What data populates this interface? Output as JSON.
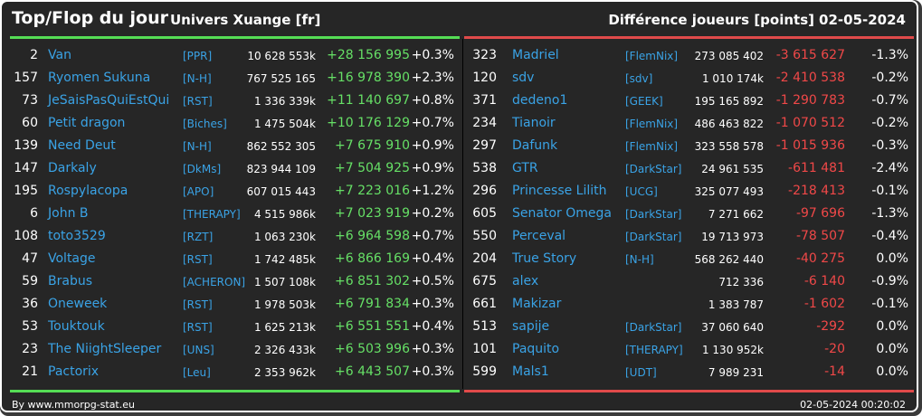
{
  "header": {
    "title": "Top/Flop du jour",
    "universe": "Univers Xuange [fr]",
    "metric": "Différence joueurs [points]",
    "date": "02-05-2024"
  },
  "colors": {
    "background": "#262626",
    "top_bar": "#55dd55",
    "flop_bar": "#e04a4a",
    "name": "#3aa3e6",
    "gain": "#66e066",
    "loss": "#f04848"
  },
  "top": [
    {
      "rank": "2",
      "name": "Van",
      "guild": "[PPR]",
      "score": "10 628 553k",
      "diff": "+28 156 995",
      "pct": "+0.3%"
    },
    {
      "rank": "157",
      "name": "Ryomen Sukuna",
      "guild": "[N-H]",
      "score": "767 525 165",
      "diff": "+16 978 390",
      "pct": "+2.3%"
    },
    {
      "rank": "73",
      "name": "JeSaisPasQuiEstQui",
      "guild": "[RST]",
      "score": "1 336 339k",
      "diff": "+11 140 697",
      "pct": "+0.8%"
    },
    {
      "rank": "60",
      "name": "Petit dragon",
      "guild": "[Biches]",
      "score": "1 475 504k",
      "diff": "+10 176 129",
      "pct": "+0.7%"
    },
    {
      "rank": "139",
      "name": "Need Deut",
      "guild": "[N-H]",
      "score": "862 552 305",
      "diff": "+7 675 910",
      "pct": "+0.9%"
    },
    {
      "rank": "147",
      "name": "Darkaly",
      "guild": "[DkMs]",
      "score": "823 944 109",
      "diff": "+7 504 925",
      "pct": "+0.9%"
    },
    {
      "rank": "195",
      "name": "Rospylacopa",
      "guild": "[APO]",
      "score": "607 015 443",
      "diff": "+7 223 016",
      "pct": "+1.2%"
    },
    {
      "rank": "6",
      "name": "John B",
      "guild": "[THERAPY]",
      "score": "4 515 986k",
      "diff": "+7 023 919",
      "pct": "+0.2%"
    },
    {
      "rank": "108",
      "name": "toto3529",
      "guild": "[RZT]",
      "score": "1 063 230k",
      "diff": "+6 964 598",
      "pct": "+0.7%"
    },
    {
      "rank": "47",
      "name": "Voltage",
      "guild": "[RST]",
      "score": "1 742 485k",
      "diff": "+6 866 169",
      "pct": "+0.4%"
    },
    {
      "rank": "59",
      "name": "Brabus",
      "guild": "[ACHERON]",
      "score": "1 507 108k",
      "diff": "+6 851 302",
      "pct": "+0.5%"
    },
    {
      "rank": "36",
      "name": "Oneweek",
      "guild": "[RST]",
      "score": "1 978 503k",
      "diff": "+6 791 834",
      "pct": "+0.3%"
    },
    {
      "rank": "53",
      "name": "Touktouk",
      "guild": "[RST]",
      "score": "1 625 213k",
      "diff": "+6 551 551",
      "pct": "+0.4%"
    },
    {
      "rank": "23",
      "name": "The NiightSleeper",
      "guild": "[UNS]",
      "score": "2 326 433k",
      "diff": "+6 503 996",
      "pct": "+0.3%"
    },
    {
      "rank": "21",
      "name": "Pactorix",
      "guild": "[Leu]",
      "score": "2 353 962k",
      "diff": "+6 443 507",
      "pct": "+0.3%"
    }
  ],
  "flop": [
    {
      "rank": "323",
      "name": "Madriel",
      "guild": "[FlemNix]",
      "score": "273 085 402",
      "diff": "-3 615 627",
      "pct": "-1.3%"
    },
    {
      "rank": "120",
      "name": "sdv",
      "guild": "[sdv]",
      "score": "1 010 174k",
      "diff": "-2 410 538",
      "pct": "-0.2%"
    },
    {
      "rank": "371",
      "name": "dedeno1",
      "guild": "[GEEK]",
      "score": "195 165 892",
      "diff": "-1 290 783",
      "pct": "-0.7%"
    },
    {
      "rank": "234",
      "name": "Tianoir",
      "guild": "[FlemNix]",
      "score": "486 463 822",
      "diff": "-1 070 512",
      "pct": "-0.2%"
    },
    {
      "rank": "297",
      "name": "Dafunk",
      "guild": "[FlemNix]",
      "score": "323 558 578",
      "diff": "-1 015 936",
      "pct": "-0.3%"
    },
    {
      "rank": "538",
      "name": "GTR",
      "guild": "[DarkStar]",
      "score": "24 961 535",
      "diff": "-611 481",
      "pct": "-2.4%"
    },
    {
      "rank": "296",
      "name": "Princesse Lilith",
      "guild": "[UCG]",
      "score": "325 077 493",
      "diff": "-218 413",
      "pct": "-0.1%"
    },
    {
      "rank": "605",
      "name": "Senator Omega",
      "guild": "[DarkStar]",
      "score": "7 271 662",
      "diff": "-97 696",
      "pct": "-1.3%"
    },
    {
      "rank": "550",
      "name": "Perceval",
      "guild": "[DarkStar]",
      "score": "19 713 973",
      "diff": "-78 507",
      "pct": "-0.4%"
    },
    {
      "rank": "204",
      "name": "True Story",
      "guild": "[N-H]",
      "score": "568 262 440",
      "diff": "-40 275",
      "pct": "0.0%"
    },
    {
      "rank": "675",
      "name": "alex",
      "guild": "",
      "score": "712 336",
      "diff": "-6 140",
      "pct": "-0.9%"
    },
    {
      "rank": "661",
      "name": "Makizar",
      "guild": "",
      "score": "1 383 787",
      "diff": "-1 602",
      "pct": "-0.1%"
    },
    {
      "rank": "513",
      "name": "sapije",
      "guild": "[DarkStar]",
      "score": "37 060 640",
      "diff": "-292",
      "pct": "0.0%"
    },
    {
      "rank": "101",
      "name": "Paquito",
      "guild": "[THERAPY]",
      "score": "1 130 952k",
      "diff": "-20",
      "pct": "0.0%"
    },
    {
      "rank": "599",
      "name": "Mals1",
      "guild": "[UDT]",
      "score": "7 989 231",
      "diff": "-14",
      "pct": "0.0%"
    }
  ],
  "footer": {
    "source": "By www.mmorpg-stat.eu",
    "timestamp": "02-05-2024 00:20:02"
  }
}
